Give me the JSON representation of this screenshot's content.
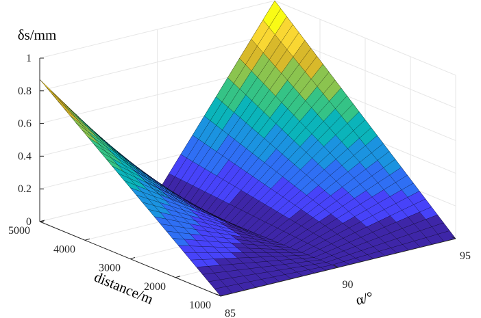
{
  "chart_data": {
    "type": "surface",
    "title": "",
    "xlabel": "α/°",
    "ylabel": "distance/m",
    "zlabel": "δs/mm",
    "x_ticks": [
      85,
      90,
      95
    ],
    "y_ticks": [
      1000,
      2000,
      3000,
      4000,
      5000
    ],
    "z_ticks": [
      0,
      0.2,
      0.4,
      0.6,
      0.8,
      1
    ],
    "z_tick_labels": [
      "0",
      "0.2",
      "0.4",
      "0.6",
      "0.8",
      "1"
    ],
    "xlim": [
      85,
      95
    ],
    "ylim": [
      1000,
      5000
    ],
    "zlim": [
      0,
      1
    ],
    "grid": true,
    "colormap": [
      "#3e26a8",
      "#4743f9",
      "#2f6ff4",
      "#1b93e0",
      "#0bb4ba",
      "#35c386",
      "#8bc44f",
      "#d8b92b",
      "#f9d733",
      "#f9fb15"
    ],
    "surface": {
      "alpha": [
        85,
        90,
        95
      ],
      "distance": [
        1000,
        5000
      ],
      "values": [
        [
          0.0,
          0.0,
          0.0
        ],
        [
          0.87,
          0.0,
          1.0
        ]
      ]
    }
  }
}
